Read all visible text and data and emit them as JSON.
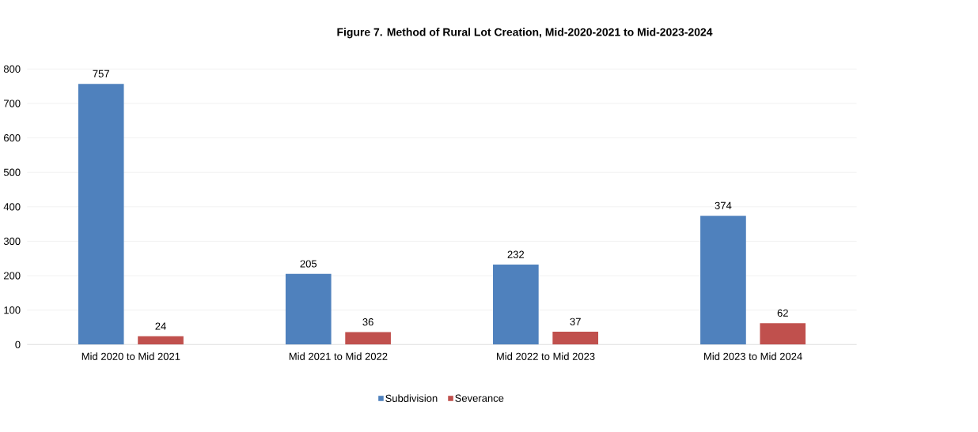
{
  "chart_data": {
    "type": "bar",
    "title": "Figure 7.  Method of Rural Lot Creation, Mid-2020-2021 to Mid-2023-2024",
    "categories": [
      "Mid 2020 to Mid 2021",
      "Mid 2021 to Mid 2022",
      "Mid 2022 to Mid 2023",
      "Mid 2023 to Mid 2024"
    ],
    "series": [
      {
        "name": "Subdivision",
        "color": "#4f81bd",
        "values": [
          757,
          205,
          232,
          374
        ]
      },
      {
        "name": "Severance",
        "color": "#c0504d",
        "values": [
          24,
          36,
          37,
          62
        ]
      }
    ],
    "ylim": [
      0,
      800
    ],
    "yticks": [
      0,
      100,
      200,
      300,
      400,
      500,
      600,
      700,
      800
    ],
    "grid": "y",
    "legend": "bottom",
    "data_labels": true
  }
}
